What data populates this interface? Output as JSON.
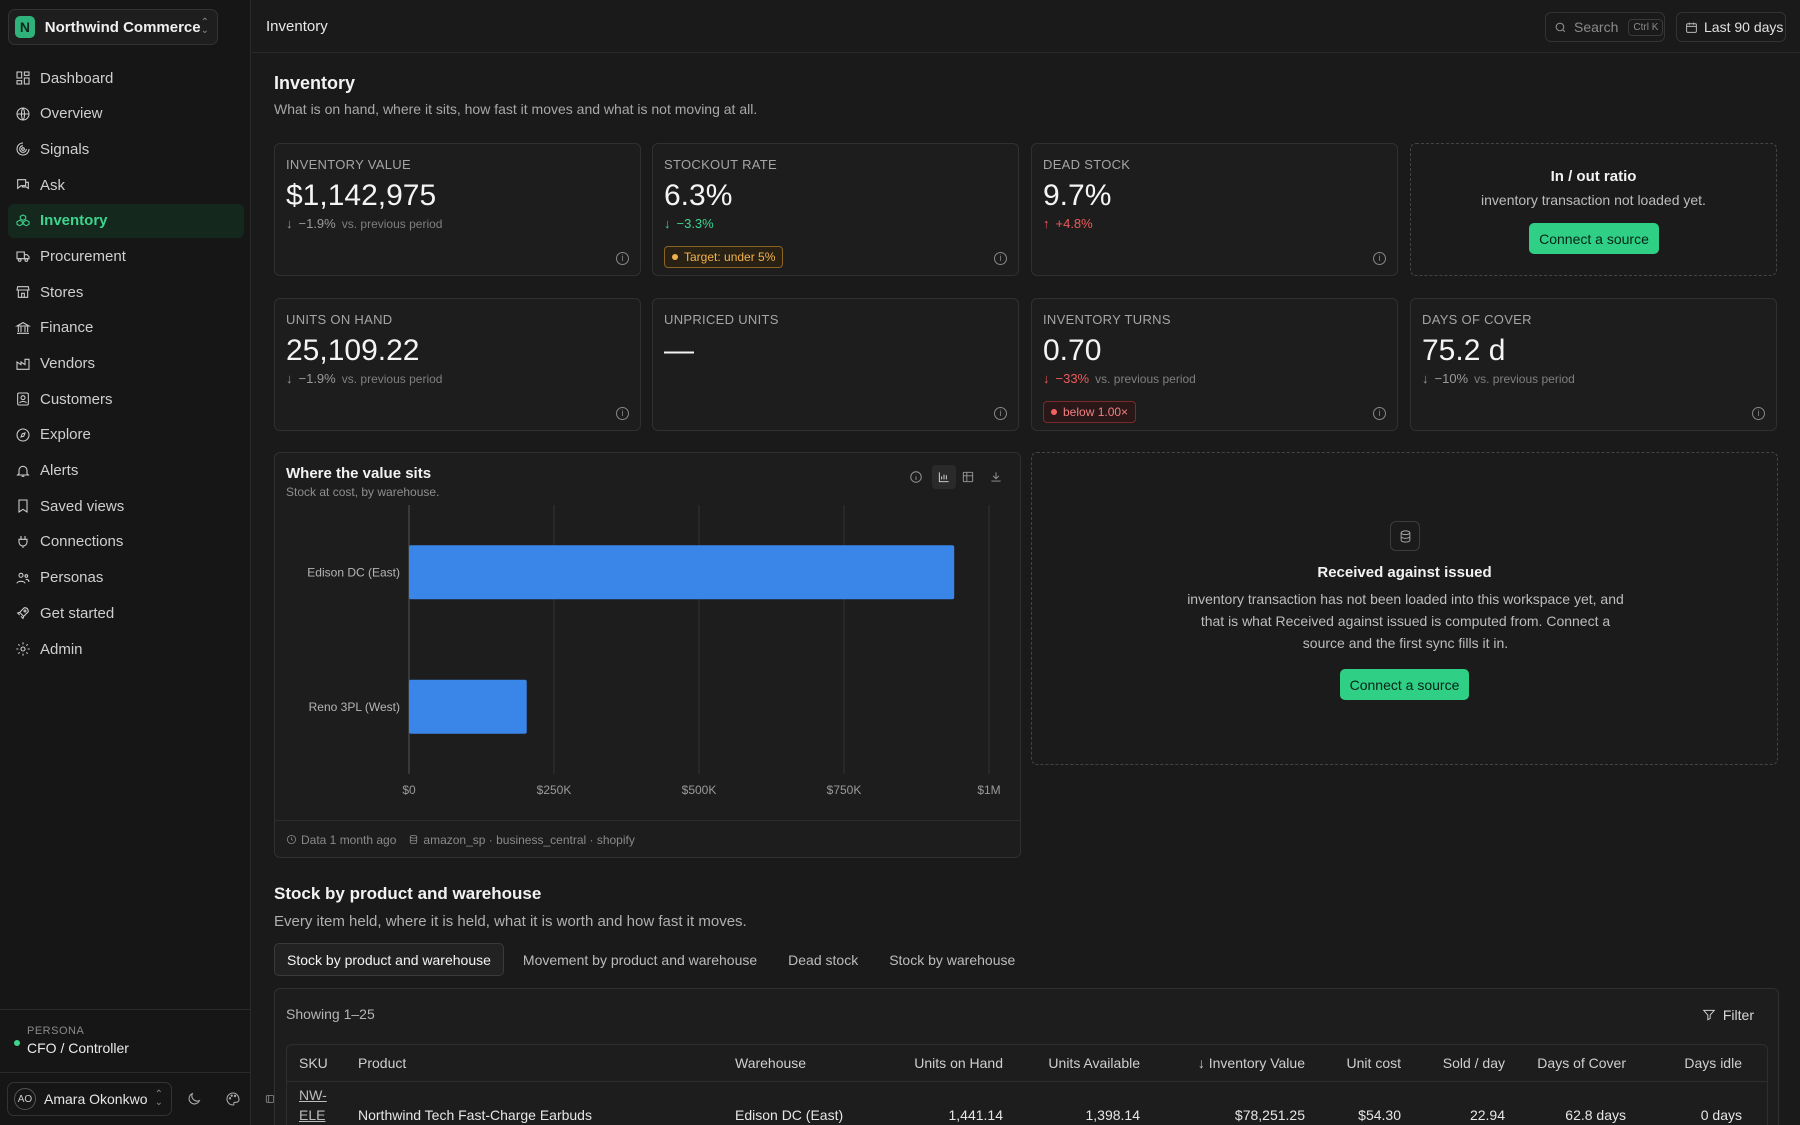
{
  "org": {
    "initial": "N",
    "name": "Northwind Commerce"
  },
  "nav": [
    {
      "label": "Dashboard",
      "icon": "dashboard-icon"
    },
    {
      "label": "Overview",
      "icon": "globe-icon"
    },
    {
      "label": "Signals",
      "icon": "signals-icon"
    },
    {
      "label": "Ask",
      "icon": "chat-icon"
    },
    {
      "label": "Inventory",
      "icon": "boxes-icon",
      "active": true
    },
    {
      "label": "Procurement",
      "icon": "truck-icon"
    },
    {
      "label": "Stores",
      "icon": "store-icon"
    },
    {
      "label": "Finance",
      "icon": "bank-icon"
    },
    {
      "label": "Vendors",
      "icon": "factory-icon"
    },
    {
      "label": "Customers",
      "icon": "contact-icon"
    },
    {
      "label": "Explore",
      "icon": "compass-icon"
    },
    {
      "label": "Alerts",
      "icon": "bell-icon"
    },
    {
      "label": "Saved views",
      "icon": "bookmark-icon"
    },
    {
      "label": "Connections",
      "icon": "plug-icon"
    },
    {
      "label": "Personas",
      "icon": "users-icon"
    },
    {
      "label": "Get started",
      "icon": "rocket-icon"
    },
    {
      "label": "Admin",
      "icon": "gear-icon"
    }
  ],
  "persona": {
    "label": "PERSONA",
    "value": "CFO / Controller"
  },
  "user": {
    "initials": "AO",
    "name": "Amara Okonkwo"
  },
  "topbar": {
    "breadcrumb": "Inventory",
    "search_label": "Search",
    "search_kbd": "Ctrl K",
    "range": "Last 90 days"
  },
  "page": {
    "title": "Inventory",
    "subtitle": "What is on hand, where it sits, how fast it moves and what is not moving at all."
  },
  "kpis": {
    "inventory_value": {
      "label": "INVENTORY VALUE",
      "value": "$1,142,975",
      "arrow": "↓",
      "delta": "−1.9%",
      "vs": "vs. previous period"
    },
    "stockout_rate": {
      "label": "STOCKOUT RATE",
      "value": "6.3%",
      "arrow": "↓",
      "delta": "−3.3%",
      "badge": "Target: under 5%"
    },
    "dead_stock": {
      "label": "DEAD STOCK",
      "value": "9.7%",
      "arrow": "↑",
      "delta": "+4.8%"
    },
    "in_out": {
      "title": "In / out ratio",
      "text": "inventory transaction not loaded yet.",
      "cta": "Connect a source"
    },
    "units_on_hand": {
      "label": "UNITS ON HAND",
      "value": "25,109.22",
      "arrow": "↓",
      "delta": "−1.9%",
      "vs": "vs. previous period"
    },
    "unpriced_units": {
      "label": "UNPRICED UNITS",
      "value": "—"
    },
    "inventory_turns": {
      "label": "INVENTORY TURNS",
      "value": "0.70",
      "arrow": "↓",
      "delta": "−33%",
      "vs": "vs. previous period",
      "badge": "below 1.00×"
    },
    "days_of_cover": {
      "label": "DAYS OF COVER",
      "value": "75.2 d",
      "arrow": "↓",
      "delta": "−10%",
      "vs": "vs. previous period"
    }
  },
  "chart_data": {
    "type": "bar",
    "orientation": "horizontal",
    "title": "Where the value sits",
    "subtitle": "Stock at cost, by warehouse.",
    "categories": [
      "Edison DC (East)",
      "Reno 3PL (West)"
    ],
    "values": [
      940000,
      203000
    ],
    "xlim": [
      0,
      1000000
    ],
    "ticks": [
      0,
      250000,
      500000,
      750000,
      1000000
    ],
    "tick_labels": [
      "$0",
      "$250K",
      "$500K",
      "$750K",
      "$1M"
    ],
    "grid": true,
    "bar_color": "#3a86e8",
    "footer_age": "Data 1 month ago",
    "footer_sources": "amazon_sp · business_central · shopify"
  },
  "received": {
    "title": "Received against issued",
    "text": "inventory transaction has not been loaded into this workspace yet, and that is what Received against issued is computed from. Connect a source and the first sync fills it in.",
    "cta": "Connect a source"
  },
  "section": {
    "title": "Stock by product and warehouse",
    "subtitle": "Every item held, where it is held, what it is worth and how fast it moves.",
    "tabs": [
      "Stock by product and warehouse",
      "Movement by product and warehouse",
      "Dead stock",
      "Stock by warehouse"
    ]
  },
  "table": {
    "showing": "Showing 1–25",
    "filter": "Filter",
    "sort_arrow": "↓",
    "columns": [
      "SKU",
      "Product",
      "Warehouse",
      "Units on Hand",
      "Units Available",
      "Inventory Value",
      "Unit cost",
      "Sold / day",
      "Days of Cover",
      "Days idle"
    ],
    "rows": [
      [
        "NW-ELE-",
        "Northwind Tech Fast-Charge Earbuds",
        "Edison DC (East)",
        "1,441.14",
        "1,398.14",
        "$78,251.25",
        "$54.30",
        "22.94",
        "62.8 days",
        "0 days"
      ]
    ]
  },
  "colors": {
    "accent": "#3fd48d",
    "negative": "#ef5a5a",
    "warning": "#f2b24b",
    "bar": "#3a86e8"
  }
}
